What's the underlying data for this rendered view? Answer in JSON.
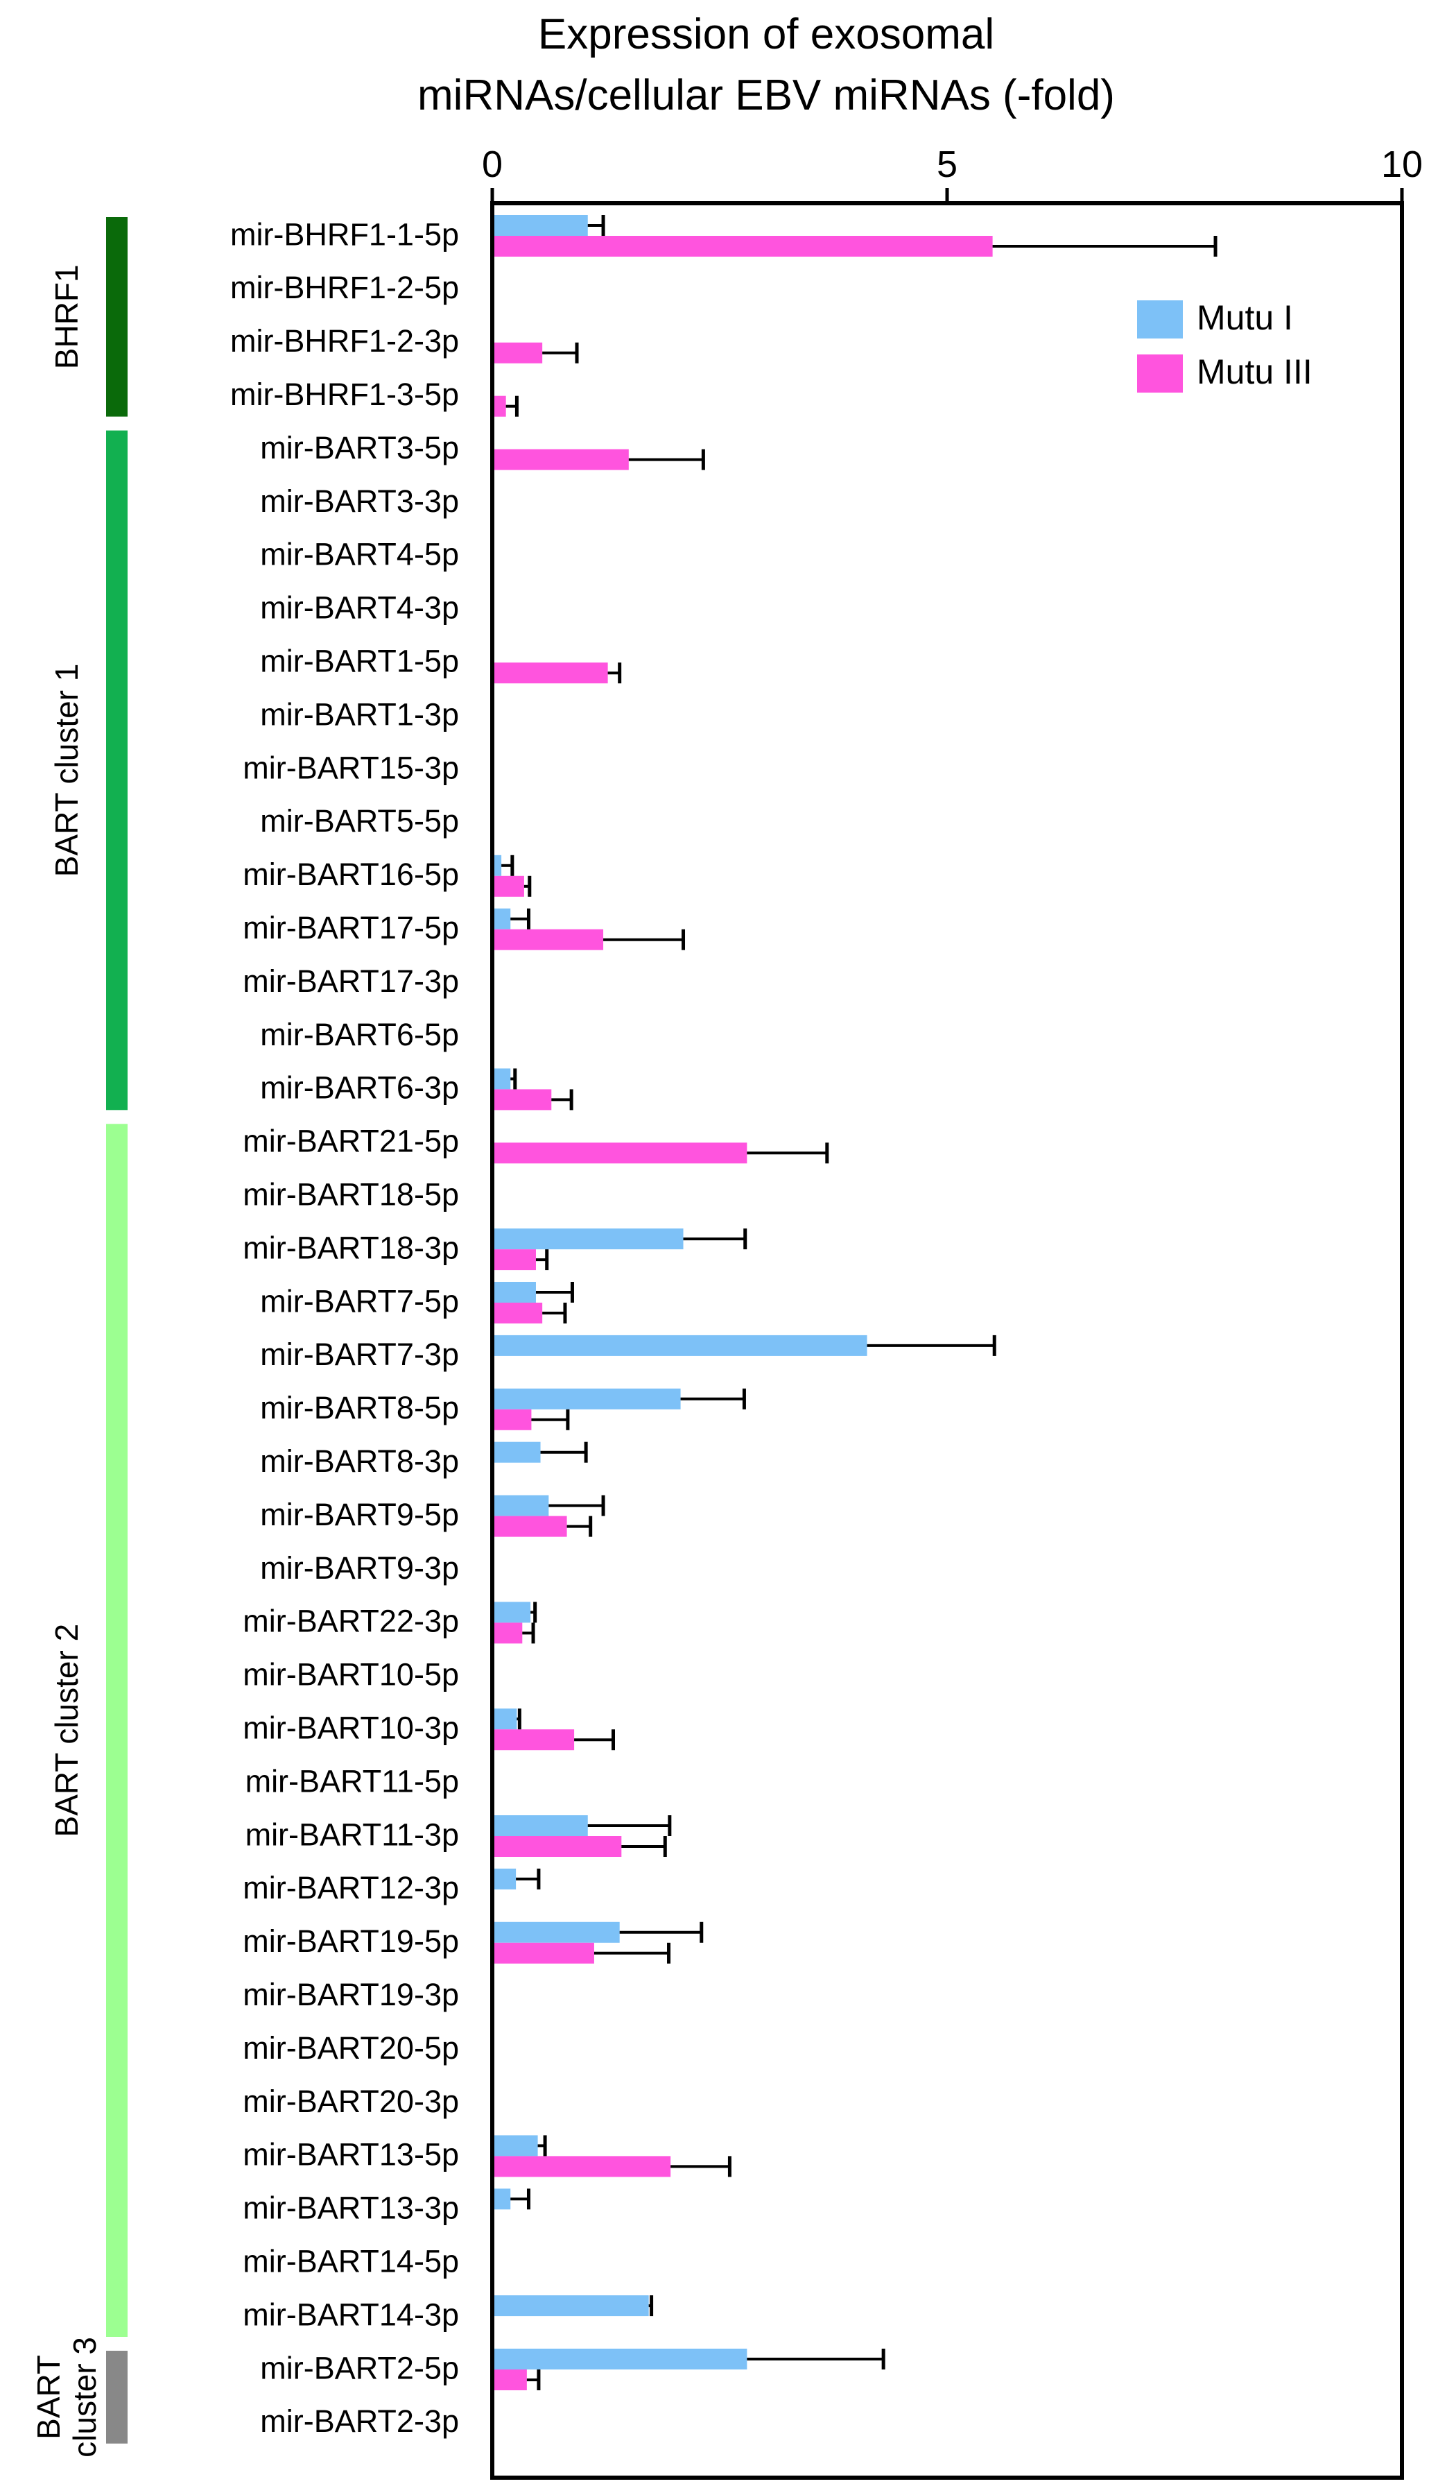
{
  "chart_data": {
    "type": "bar",
    "orientation": "horizontal",
    "title_lines": [
      "Expression of exosomal",
      "miRNAs/cellular EBV miRNAs (-fold)"
    ],
    "xlim": [
      0,
      10
    ],
    "xticks": [
      0,
      5,
      10
    ],
    "legend_position": "top-right",
    "categories": [
      "mir-BHRF1-1-5p",
      "mir-BHRF1-2-5p",
      "mir-BHRF1-2-3p",
      "mir-BHRF1-3-5p",
      "mir-BART3-5p",
      "mir-BART3-3p",
      "mir-BART4-5p",
      "mir-BART4-3p",
      "mir-BART1-5p",
      "mir-BART1-3p",
      "mir-BART15-3p",
      "mir-BART5-5p",
      "mir-BART16-5p",
      "mir-BART17-5p",
      "mir-BART17-3p",
      "mir-BART6-5p",
      "mir-BART6-3p",
      "mir-BART21-5p",
      "mir-BART18-5p",
      "mir-BART18-3p",
      "mir-BART7-5p",
      "mir-BART7-3p",
      "mir-BART8-5p",
      "mir-BART8-3p",
      "mir-BART9-5p",
      "mir-BART9-3p",
      "mir-BART22-3p",
      "mir-BART10-5p",
      "mir-BART10-3p",
      "mir-BART11-5p",
      "mir-BART11-3p",
      "mir-BART12-3p",
      "mir-BART19-5p",
      "mir-BART19-3p",
      "mir-BART20-5p",
      "mir-BART20-3p",
      "mir-BART13-5p",
      "mir-BART13-3p",
      "mir-BART14-5p",
      "mir-BART14-3p",
      "mir-BART2-5p",
      "mir-BART2-3p"
    ],
    "series": [
      {
        "name": "Mutu I",
        "color": "#7dc1f7",
        "values": [
          1.05,
          0,
          0,
          0,
          0,
          0,
          0,
          0,
          0,
          0,
          0,
          0,
          0.1,
          0.2,
          0,
          0,
          0.2,
          0,
          0,
          2.1,
          0.48,
          4.12,
          2.07,
          0.53,
          0.62,
          0,
          0.42,
          0,
          0.27,
          0,
          1.05,
          0.26,
          1.4,
          0,
          0,
          0,
          0.5,
          0.2,
          0,
          1.72,
          2.8,
          0
        ],
        "errors": [
          0.17,
          0,
          0,
          0,
          0,
          0,
          0,
          0,
          0,
          0,
          0,
          0,
          0.12,
          0.2,
          0,
          0,
          0.05,
          0,
          0,
          0.68,
          0.4,
          1.4,
          0.7,
          0.5,
          0.6,
          0,
          0.05,
          0,
          0.03,
          0,
          0.9,
          0.25,
          0.9,
          0,
          0,
          0,
          0.08,
          0.2,
          0,
          0.03,
          1.5,
          0
        ]
      },
      {
        "name": "Mutu III",
        "color": "#ff54de",
        "values": [
          5.5,
          0,
          0.55,
          0.15,
          1.5,
          0,
          0,
          0,
          1.27,
          0,
          0,
          0,
          0.35,
          1.22,
          0,
          0,
          0.65,
          2.8,
          0,
          0.48,
          0.55,
          0,
          0.43,
          0,
          0.82,
          0,
          0.33,
          0,
          0.9,
          0,
          1.42,
          0,
          1.12,
          0,
          0,
          0,
          1.96,
          0,
          0,
          0,
          0.38,
          0
        ],
        "errors": [
          2.45,
          0,
          0.38,
          0.12,
          0.82,
          0,
          0,
          0,
          0.13,
          0,
          0,
          0,
          0.06,
          0.88,
          0,
          0,
          0.22,
          0.88,
          0,
          0.12,
          0.25,
          0,
          0.4,
          0,
          0.26,
          0,
          0.12,
          0,
          0.43,
          0,
          0.48,
          0,
          0.82,
          0,
          0,
          0,
          0.65,
          0,
          0,
          0,
          0.13,
          0
        ]
      }
    ],
    "groups": [
      {
        "lines": [
          "BHRF1"
        ],
        "color": "#0a6a0a",
        "start_index": 0,
        "end_index": 3
      },
      {
        "lines": [
          "BART cluster 1"
        ],
        "color": "#12b050",
        "start_index": 4,
        "end_index": 16
      },
      {
        "lines": [
          "BART cluster 2"
        ],
        "color": "#9cff91",
        "start_index": 17,
        "end_index": 39
      },
      {
        "lines": [
          "BART",
          "cluster 3"
        ],
        "color": "#888888",
        "start_index": 40,
        "end_index": 41
      }
    ]
  }
}
